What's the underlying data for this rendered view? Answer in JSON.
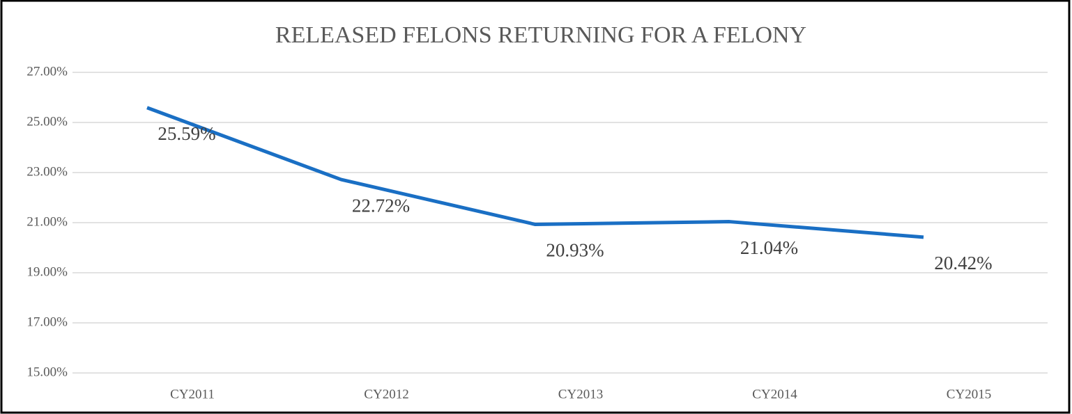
{
  "chart_data": {
    "type": "line",
    "title": "RELEASED FELONS RETURNING FOR A FELONY",
    "categories": [
      "CY2011",
      "CY2012",
      "CY2013",
      "CY2014",
      "CY2015"
    ],
    "series": [
      {
        "name": "Released felons returning for a felony",
        "color": "#1a6fc4",
        "values": [
          25.59,
          22.72,
          20.93,
          21.04,
          20.42
        ],
        "value_labels": [
          "25.59%",
          "22.72%",
          "20.93%",
          "21.04%",
          "20.42%"
        ]
      }
    ],
    "ylim": [
      15,
      27
    ],
    "yticks": [
      {
        "value": 15,
        "label": "15.00%"
      },
      {
        "value": 17,
        "label": "17.00%"
      },
      {
        "value": 19,
        "label": "19.00%"
      },
      {
        "value": 21,
        "label": "21.00%"
      },
      {
        "value": 23,
        "label": "23.00%"
      },
      {
        "value": 25,
        "label": "25.00%"
      },
      {
        "value": 27,
        "label": "27.00%"
      }
    ],
    "grid": true
  }
}
